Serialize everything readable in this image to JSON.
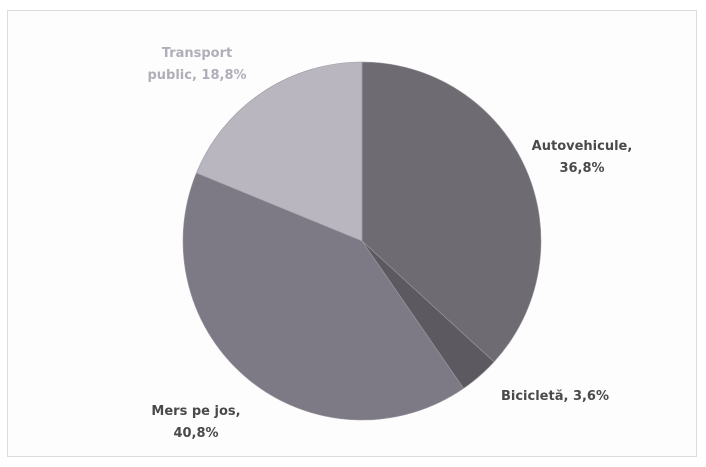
{
  "chart_data": {
    "type": "pie",
    "title": "",
    "slices": [
      {
        "label": "Autovehicule",
        "value": 36.8,
        "display": "36,8%",
        "color": "#6e6b72"
      },
      {
        "label": "Bicicletă",
        "value": 3.6,
        "display": "3,6%",
        "color": "#5c5960"
      },
      {
        "label": "Mers pe jos",
        "value": 40.8,
        "display": "40,8%",
        "color": "#7e7a85"
      },
      {
        "label": "Transport public",
        "value": 18.8,
        "display": "18,8%",
        "color": "#b9b6c0"
      }
    ],
    "data_labels": {
      "autovehicule": {
        "line1": "Autovehicule,",
        "line2": "36,8%"
      },
      "bicicleta": {
        "line1": "Bicicletă, 3,6%"
      },
      "mers_pe_jos": {
        "line1": "Mers pe jos,",
        "line2": "40,8%"
      },
      "transport_public": {
        "line1": "Transport",
        "line2": "public, 18,8%"
      }
    },
    "label_color": "#4a4a4a",
    "light_label_color": "#b0aeb8",
    "start_angle": "12 o'clock",
    "direction": "clockwise",
    "legend": "none"
  }
}
